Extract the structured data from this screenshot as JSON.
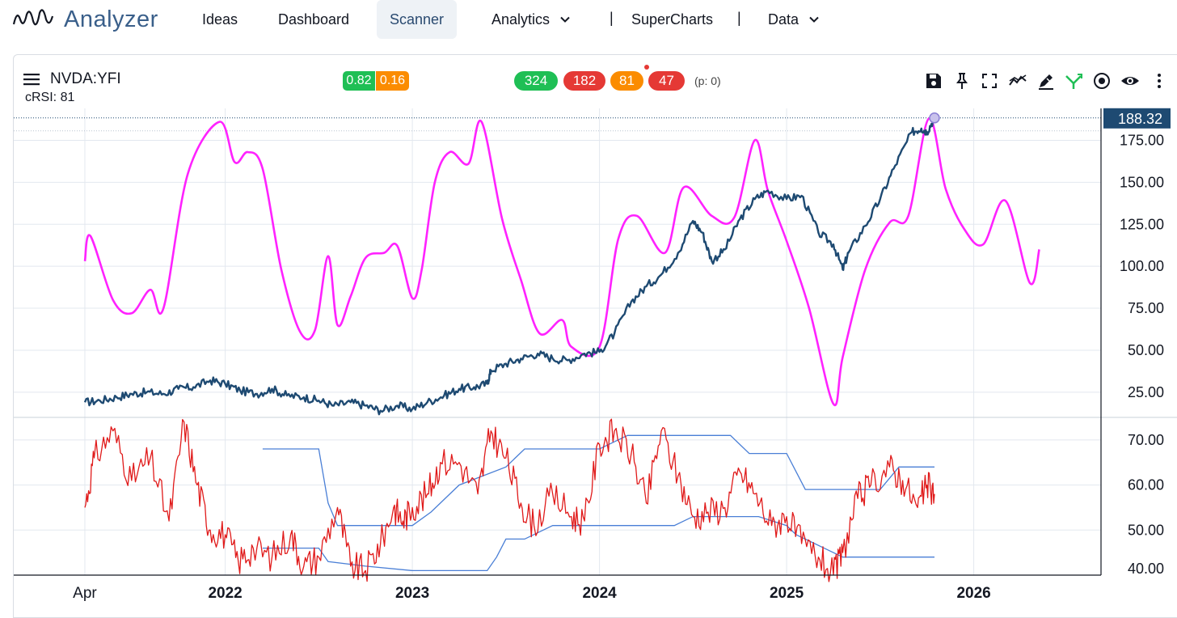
{
  "nav": {
    "brand": "Analyzer",
    "items": [
      {
        "label": "Ideas"
      },
      {
        "label": "Dashboard"
      },
      {
        "label": "Scanner"
      },
      {
        "label": "Analytics"
      },
      {
        "label": "SuperCharts"
      },
      {
        "label": "Data"
      }
    ],
    "separator": "|"
  },
  "header": {
    "symbol": "NVDA:YFI",
    "indicator_label": "cRSI: 81",
    "badges": [
      "0.82",
      "0.16"
    ],
    "counts": [
      "324",
      "182",
      "81",
      "47"
    ],
    "p_label": "(p: 0)"
  },
  "colors": {
    "price": "#1e4a72",
    "crsi_overlay": "#ff22ff",
    "rsi": "#e01a1a",
    "bands": "#4a7fd6",
    "green": "#1fbf55",
    "red": "#e53935",
    "orange": "#fb8c00",
    "price_tag": "#1e4a72"
  },
  "toolbar_icons": [
    "save-icon",
    "pin-icon",
    "fullscreen-icon",
    "compare-icon",
    "draw-icon",
    "crossover-icon",
    "target-icon",
    "eye-icon",
    "more-icon"
  ],
  "chart_data": [
    {
      "type": "line",
      "title": "NVDA:YFI",
      "xlabel": "",
      "ylabel": "",
      "ylim": [
        10,
        194
      ],
      "yticks": [
        "25.00",
        "50.00",
        "75.00",
        "100.00",
        "125.00",
        "150.00",
        "175.00"
      ],
      "last_price_label": "188.32",
      "last_price": 188.32,
      "x_ticks": [
        {
          "label": "Apr",
          "t": 2021.25,
          "bold": false
        },
        {
          "label": "2022",
          "t": 2022.0,
          "bold": true
        },
        {
          "label": "2023",
          "t": 2023.0,
          "bold": true
        },
        {
          "label": "2024",
          "t": 2024.0,
          "bold": true
        },
        {
          "label": "2025",
          "t": 2025.0,
          "bold": true
        },
        {
          "label": "2026",
          "t": 2026.0,
          "bold": true
        }
      ],
      "xlim": [
        2020.87,
        2026.68
      ],
      "series": [
        {
          "name": "Price",
          "x": [
            2021.25,
            2021.33,
            2021.42,
            2021.5,
            2021.58,
            2021.67,
            2021.75,
            2021.83,
            2021.92,
            2022.0,
            2022.08,
            2022.17,
            2022.25,
            2022.33,
            2022.42,
            2022.5,
            2022.58,
            2022.67,
            2022.75,
            2022.83,
            2022.92,
            2023.0,
            2023.08,
            2023.17,
            2023.25,
            2023.33,
            2023.4,
            2023.42,
            2023.5,
            2023.58,
            2023.67,
            2023.75,
            2023.83,
            2023.92,
            2024.0,
            2024.08,
            2024.17,
            2024.25,
            2024.33,
            2024.42,
            2024.5,
            2024.55,
            2024.6,
            2024.67,
            2024.75,
            2024.83,
            2024.9,
            2025.0,
            2025.08,
            2025.17,
            2025.25,
            2025.3,
            2025.33,
            2025.42,
            2025.5,
            2025.58,
            2025.67,
            2025.72,
            2025.75,
            2025.79
          ],
          "values": [
            19,
            20,
            22,
            24,
            25,
            24,
            27,
            28,
            32,
            30,
            26,
            24,
            27,
            23,
            22,
            20,
            17,
            19,
            17,
            14,
            17,
            15,
            19,
            23,
            27,
            28,
            30,
            38,
            42,
            45,
            48,
            45,
            44,
            48,
            49,
            60,
            79,
            88,
            95,
            108,
            127,
            120,
            103,
            110,
            128,
            140,
            145,
            140,
            142,
            120,
            113,
            98,
            108,
            124,
            140,
            160,
            180,
            182,
            180,
            188.32
          ]
        },
        {
          "name": "cRSI",
          "x": [
            2021.25,
            2021.28,
            2021.4,
            2021.5,
            2021.6,
            2021.67,
            2021.8,
            2021.97,
            2022.05,
            2022.12,
            2022.2,
            2022.3,
            2022.4,
            2022.48,
            2022.55,
            2022.6,
            2022.67,
            2022.75,
            2022.85,
            2022.92,
            2023.0,
            2023.05,
            2023.12,
            2023.2,
            2023.3,
            2023.37,
            2023.48,
            2023.58,
            2023.68,
            2023.8,
            2023.85,
            2024.0,
            2024.1,
            2024.2,
            2024.35,
            2024.45,
            2024.6,
            2024.72,
            2024.83,
            2024.9,
            2025.0,
            2025.12,
            2025.25,
            2025.3,
            2025.42,
            2025.55,
            2025.65,
            2025.76,
            2025.85,
            2025.95,
            2026.05,
            2026.17,
            2026.3,
            2026.35
          ],
          "values": [
            103,
            118,
            80,
            72,
            86,
            75,
            155,
            186,
            162,
            168,
            158,
            98,
            61,
            62,
            106,
            65,
            82,
            105,
            108,
            112,
            81,
            98,
            150,
            168,
            161,
            186,
            128,
            92,
            60,
            68,
            52,
            52,
            116,
            130,
            108,
            147,
            130,
            129,
            175,
            145,
            115,
            75,
            18,
            46,
            98,
            126,
            130,
            188,
            146,
            122,
            113,
            139,
            90,
            110
          ]
        }
      ]
    },
    {
      "type": "line",
      "title": "",
      "ylim": [
        40,
        75
      ],
      "yticks": [
        "40.00",
        "50.00",
        "60.00",
        "70.00"
      ],
      "series": [
        {
          "name": "RSI",
          "x": [
            2021.25,
            2021.3,
            2021.4,
            2021.5,
            2021.6,
            2021.7,
            2021.78,
            2021.85,
            2021.92,
            2022.0,
            2022.07,
            2022.15,
            2022.25,
            2022.35,
            2022.42,
            2022.5,
            2022.6,
            2022.67,
            2022.75,
            2022.83,
            2022.9,
            2022.95,
            2023.0,
            2023.08,
            2023.15,
            2023.25,
            2023.35,
            2023.42,
            2023.5,
            2023.58,
            2023.65,
            2023.75,
            2023.85,
            2023.92,
            2024.0,
            2024.08,
            2024.17,
            2024.25,
            2024.33,
            2024.42,
            2024.5,
            2024.58,
            2024.67,
            2024.75,
            2024.83,
            2024.92,
            2025.0,
            2025.08,
            2025.17,
            2025.25,
            2025.3,
            2025.38,
            2025.45,
            2025.55,
            2025.62,
            2025.7,
            2025.75,
            2025.79
          ],
          "values": [
            55,
            66,
            72,
            61,
            66,
            52,
            74,
            60,
            50,
            49,
            43,
            46,
            44,
            49,
            42,
            44,
            55,
            42,
            41,
            47,
            55,
            52,
            55,
            58,
            65,
            65,
            58,
            72,
            66,
            56,
            51,
            58,
            53,
            52,
            69,
            72,
            67,
            56,
            72,
            62,
            53,
            54,
            55,
            63,
            58,
            51,
            53,
            47,
            44,
            40,
            45,
            57,
            60,
            64,
            61,
            55,
            60,
            58
          ]
        },
        {
          "name": "Upper band",
          "x": [
            2022.2,
            2022.5,
            2022.55,
            2022.6,
            2022.75,
            2023.0,
            2023.1,
            2023.25,
            2023.5,
            2023.6,
            2024.0,
            2024.15,
            2024.5,
            2024.7,
            2024.8,
            2025.0,
            2025.05,
            2025.1,
            2025.5,
            2025.6,
            2025.79
          ],
          "values": [
            68,
            68,
            56,
            51,
            51,
            51,
            54,
            60,
            64,
            68,
            68,
            71,
            71,
            71,
            67,
            67,
            63,
            59,
            59,
            64,
            64
          ]
        },
        {
          "name": "Lower band",
          "x": [
            2022.2,
            2022.5,
            2022.55,
            2022.75,
            2023.0,
            2023.4,
            2023.45,
            2023.5,
            2023.6,
            2023.75,
            2024.0,
            2024.15,
            2024.4,
            2024.5,
            2024.7,
            2024.85,
            2025.0,
            2025.05,
            2025.15,
            2025.3,
            2025.79
          ],
          "values": [
            46,
            46,
            43,
            42,
            41,
            41,
            44,
            48,
            48,
            51,
            51,
            51,
            51,
            53,
            53,
            53,
            51,
            49,
            47,
            44,
            44
          ]
        }
      ]
    }
  ]
}
